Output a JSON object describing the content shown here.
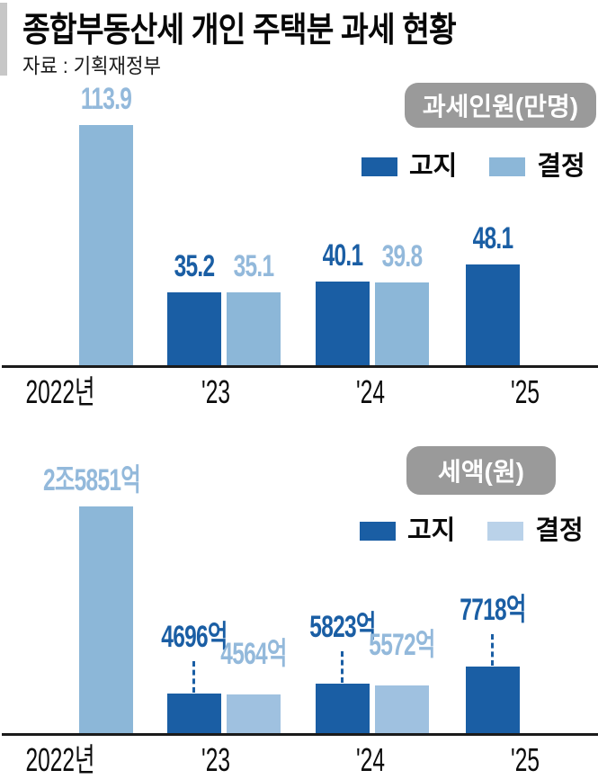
{
  "header": {
    "title": "종합부동산세 개인 주택분 과세 현황",
    "source": "자료 : 기획재정부"
  },
  "colors": {
    "dark_blue": "#1a5ea4",
    "light_blue": "#8cb7d8",
    "light_blue_soft": "#9fc1e0",
    "light_text": "#93b9db",
    "badge_gray": "#9a9a9a",
    "axis": "#1b1b1b",
    "accent_bar": "#c7c7c7"
  },
  "chart_data": [
    {
      "type": "bar",
      "title": "과세인원(만명)",
      "unit": "만명",
      "categories": [
        "2022년",
        "'23",
        "'24",
        "'25"
      ],
      "legend": [
        "고지",
        "결정"
      ],
      "legend_position": "top-right",
      "ylim": [
        0,
        120
      ],
      "grid": false,
      "series": [
        {
          "name": "고지",
          "values": [
            null,
            35.2,
            40.1,
            48.1
          ]
        },
        {
          "name": "결정",
          "values": [
            113.9,
            35.1,
            39.8,
            null
          ]
        }
      ],
      "bars": [
        {
          "category": "2022년",
          "series": "결정",
          "value": 113.9,
          "label": "113.9",
          "color": "light"
        },
        {
          "category": "'23",
          "series": "고지",
          "value": 35.2,
          "label": "35.2",
          "color": "dark"
        },
        {
          "category": "'23",
          "series": "결정",
          "value": 35.1,
          "label": "35.1",
          "color": "light"
        },
        {
          "category": "'24",
          "series": "고지",
          "value": 40.1,
          "label": "40.1",
          "color": "dark"
        },
        {
          "category": "'24",
          "series": "결정",
          "value": 39.8,
          "label": "39.8",
          "color": "light"
        },
        {
          "category": "'25",
          "series": "고지",
          "value": 48.1,
          "label": "48.1",
          "color": "dark"
        }
      ]
    },
    {
      "type": "bar",
      "title": "세액(원)",
      "unit": "억원",
      "categories": [
        "2022년",
        "'23",
        "'24",
        "'25"
      ],
      "legend": [
        "고지",
        "결정"
      ],
      "legend_position": "top-right",
      "ylim": [
        0,
        27000
      ],
      "grid": false,
      "series": [
        {
          "name": "고지",
          "values": [
            null,
            4696,
            5823,
            7718
          ]
        },
        {
          "name": "결정",
          "values": [
            25851,
            4564,
            5572,
            null
          ]
        }
      ],
      "bars": [
        {
          "category": "2022년",
          "series": "결정",
          "value": 25851,
          "label": "2조5851억",
          "color": "light"
        },
        {
          "category": "'23",
          "series": "고지",
          "value": 4696,
          "label": "4696억",
          "color": "dark",
          "connector": true
        },
        {
          "category": "'23",
          "series": "결정",
          "value": 4564,
          "label": "4564억",
          "color": "light",
          "soft": true,
          "raised": true
        },
        {
          "category": "'24",
          "series": "고지",
          "value": 5823,
          "label": "5823억",
          "color": "dark",
          "connector": true
        },
        {
          "category": "'24",
          "series": "결정",
          "value": 5572,
          "label": "5572억",
          "color": "light",
          "soft": true,
          "raised": true
        },
        {
          "category": "'25",
          "series": "고지",
          "value": 7718,
          "label": "7718억",
          "color": "dark",
          "connector": true
        }
      ]
    }
  ]
}
